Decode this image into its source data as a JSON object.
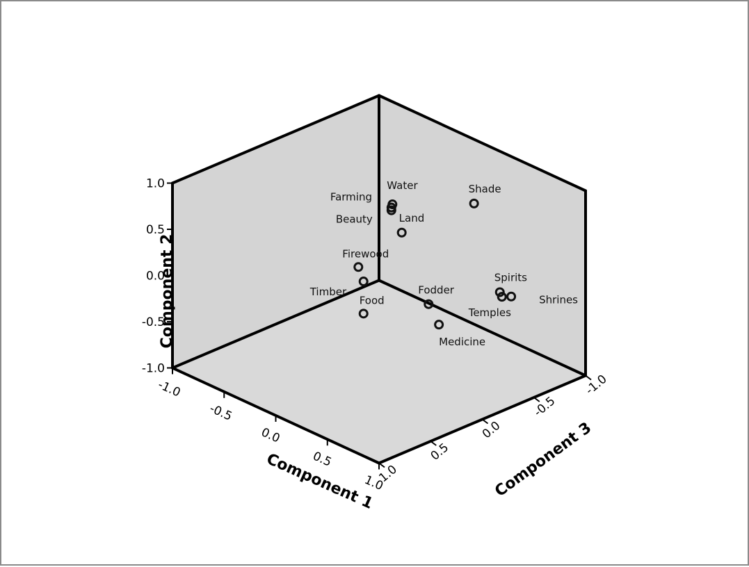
{
  "chart_data": {
    "type": "scatter",
    "subtype": "3d",
    "x_label": "Component 1",
    "y_label": "Component 2",
    "z_label": "Component 3",
    "xlim": [
      -1.0,
      1.0
    ],
    "ylim": [
      -1.0,
      1.0
    ],
    "zlim": [
      -1.0,
      1.0
    ],
    "x_ticks": [
      "-1.0",
      "-0.5",
      "0.0",
      "0.5",
      "1.0"
    ],
    "y_ticks": [
      "1.0",
      "0.5",
      "0.0",
      "-0.5",
      "-1.0"
    ],
    "z_ticks": [
      "1.0",
      "0.5",
      "0.0",
      "-0.5",
      "-1.0"
    ],
    "grid": false,
    "marker": "hollow-circle",
    "colors": {
      "wall": "#d4d4d4",
      "floor": "#d9d9d9",
      "edge": "#000000",
      "marker": "#111111"
    },
    "points": [
      {
        "label": "Water",
        "x": 0.03,
        "y": 0.78,
        "z": -0.1
      },
      {
        "label": "Farming",
        "x": 0.02,
        "y": 0.74,
        "z": -0.1
      },
      {
        "label": "Beauty",
        "x": 0.02,
        "y": 0.71,
        "z": -0.1
      },
      {
        "label": "Shade",
        "x": 0.42,
        "y": 0.8,
        "z": -0.5
      },
      {
        "label": "Land",
        "x": 0.12,
        "y": 0.52,
        "z": -0.1
      },
      {
        "label": "Firewood",
        "x": -0.2,
        "y": 0.03,
        "z": 0.0
      },
      {
        "label": "Timber",
        "x": -0.15,
        "y": -0.1,
        "z": 0.0
      },
      {
        "label": "Food",
        "x": 0.0,
        "y": -0.3,
        "z": 0.15
      },
      {
        "label": "Fodder",
        "x": 0.38,
        "y": -0.12,
        "z": -0.1
      },
      {
        "label": "Medicine",
        "x": 0.48,
        "y": -0.29,
        "z": -0.1
      },
      {
        "label": "Spirits",
        "x": 0.62,
        "y": -0.08,
        "z": -0.55
      },
      {
        "label": "Temples",
        "x": 0.64,
        "y": -0.12,
        "z": -0.55
      },
      {
        "label": "Shrines",
        "x": 0.68,
        "y": -0.12,
        "z": -0.6
      }
    ]
  }
}
